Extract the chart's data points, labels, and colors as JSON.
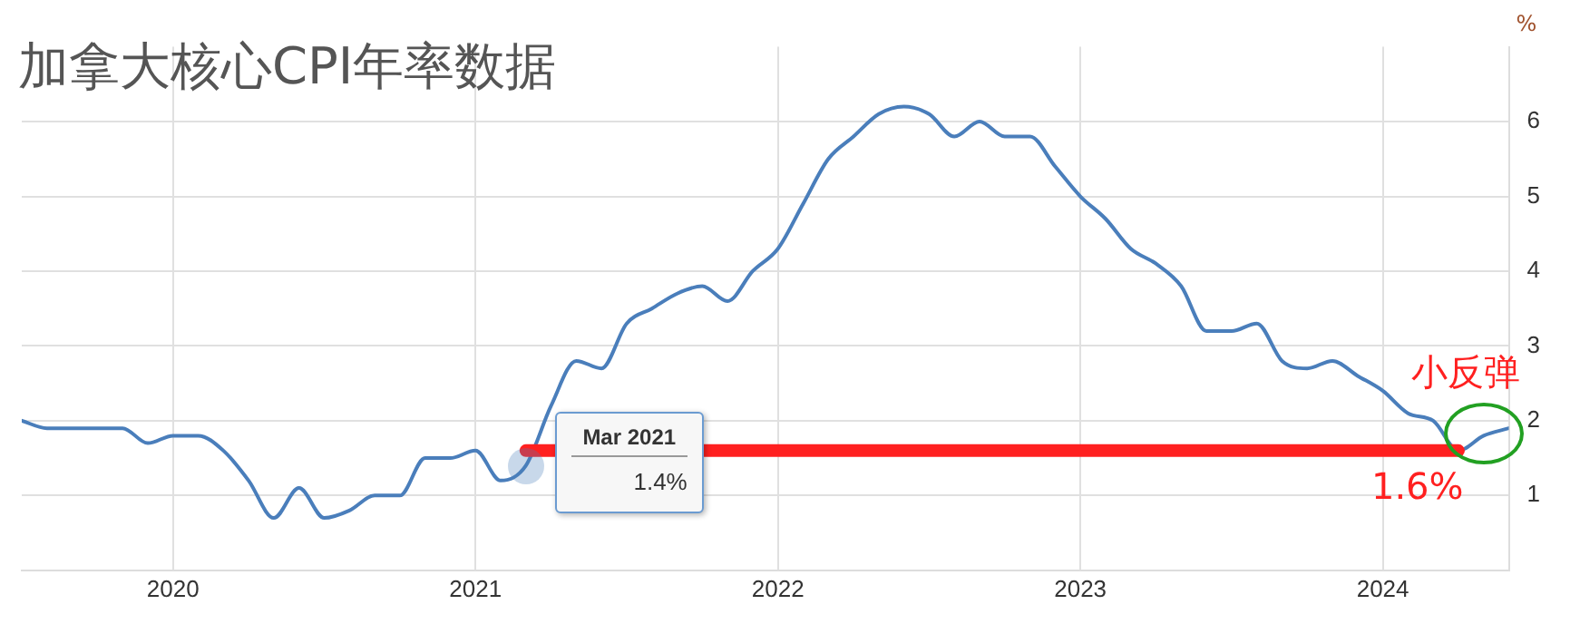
{
  "chart_data": {
    "type": "line",
    "title": "加拿大核心CPI年率数据",
    "ylabel": "%",
    "x": [
      "2019-07",
      "2019-08",
      "2019-09",
      "2019-10",
      "2019-11",
      "2019-12",
      "2020-01",
      "2020-02",
      "2020-03",
      "2020-04",
      "2020-05",
      "2020-06",
      "2020-07",
      "2020-08",
      "2020-09",
      "2020-10",
      "2020-11",
      "2020-12",
      "2021-01",
      "2021-02",
      "2021-03",
      "2021-04",
      "2021-05",
      "2021-06",
      "2021-07",
      "2021-08",
      "2021-09",
      "2021-10",
      "2021-11",
      "2021-12",
      "2022-01",
      "2022-02",
      "2022-03",
      "2022-04",
      "2022-05",
      "2022-06",
      "2022-07",
      "2022-08",
      "2022-09",
      "2022-10",
      "2022-11",
      "2022-12",
      "2023-01",
      "2023-02",
      "2023-03",
      "2023-04",
      "2023-05",
      "2023-06",
      "2023-07",
      "2023-08",
      "2023-09",
      "2023-10",
      "2023-11",
      "2023-12",
      "2024-01",
      "2024-02",
      "2024-03",
      "2024-04",
      "2024-05",
      "2024-06"
    ],
    "series": [
      {
        "color": "#4a7ebb",
        "values": [
          2.0,
          1.9,
          1.9,
          1.9,
          1.9,
          1.7,
          1.8,
          1.8,
          1.6,
          1.2,
          0.7,
          1.1,
          0.7,
          0.8,
          1.0,
          1.0,
          1.5,
          1.5,
          1.6,
          1.2,
          1.4,
          2.2,
          2.8,
          2.7,
          3.3,
          3.5,
          3.7,
          3.8,
          3.6,
          4.0,
          4.3,
          4.9,
          5.5,
          5.8,
          6.1,
          6.2,
          6.1,
          5.8,
          6.0,
          5.8,
          5.8,
          5.4,
          5.0,
          4.7,
          4.3,
          4.1,
          3.8,
          3.2,
          3.2,
          3.3,
          2.8,
          2.7,
          2.8,
          2.6,
          2.4,
          2.1,
          2.0,
          1.6,
          1.8,
          1.9
        ]
      },
      {
        "type": "line",
        "color": "#ff2020",
        "x": [
          "2021-03",
          "2024-04"
        ],
        "values": [
          1.6,
          1.6
        ]
      }
    ],
    "xlim": [
      "2019-07",
      "2024-06"
    ],
    "xticks": [
      "2020",
      "2021",
      "2022",
      "2023",
      "2024"
    ],
    "ylim": [
      0,
      7
    ],
    "yticks": [
      1,
      2,
      3,
      4,
      5,
      6
    ],
    "grid": true,
    "legend": false,
    "marker": "none",
    "line_style": "solid",
    "annotations": [
      "Mar 2021",
      "1.4%",
      {
        "text": "1.6%",
        "x": "2024-04",
        "y": 1.6
      },
      {
        "text": "小反弹",
        "x": "2024-05",
        "y": 1.8
      }
    ]
  }
}
